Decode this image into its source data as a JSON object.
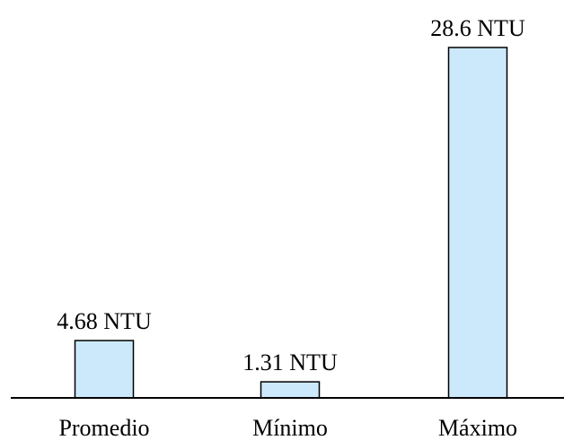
{
  "chart_data": {
    "type": "bar",
    "categories": [
      "Promedio",
      "Mínimo",
      "Máximo"
    ],
    "values": [
      4.68,
      1.31,
      28.6
    ],
    "data_labels": [
      "4.68 NTU",
      "1.31 NTU",
      "28.6 NTU"
    ],
    "unit": "NTU",
    "title": "",
    "xlabel": "",
    "ylabel": "",
    "ylim": [
      0,
      28.6
    ],
    "grid": false,
    "legend": "none",
    "bar_color": "#cce9fb",
    "bar_edge_color": "#000000"
  }
}
